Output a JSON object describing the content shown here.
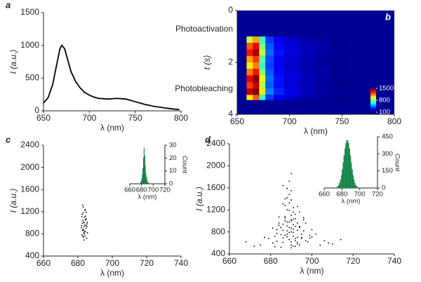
{
  "chart_data": [
    {
      "type": "line",
      "panel": "a",
      "xlabel": "λ (nm)",
      "ylabel": "I (a.u.)",
      "x": [
        650,
        655,
        660,
        665,
        668,
        670,
        673,
        676,
        680,
        685,
        690,
        695,
        700,
        705,
        710,
        720,
        730,
        740,
        750,
        760,
        770,
        780,
        790,
        798
      ],
      "values": [
        120,
        200,
        400,
        750,
        950,
        1000,
        950,
        800,
        600,
        450,
        350,
        280,
        240,
        210,
        190,
        180,
        190,
        180,
        140,
        100,
        70,
        50,
        30,
        20
      ],
      "color": "#000000",
      "xlim": [
        650,
        800
      ],
      "xticks": [
        650,
        700,
        750,
        800
      ],
      "ylim": [
        0,
        1500
      ],
      "yticks": [
        0,
        500,
        1000,
        1500
      ]
    },
    {
      "type": "heatmap",
      "panel": "b",
      "xlabel": "λ (nm)",
      "ylabel": "t (s)",
      "annotations": [
        "Photoactivation",
        "Photobleaching"
      ],
      "xlim": [
        650,
        800
      ],
      "xticks": [
        650,
        700,
        750,
        800
      ],
      "ylim": [
        4,
        0
      ],
      "yticks": [
        0,
        2,
        4
      ],
      "xbins": [
        659,
        665,
        671,
        677,
        685,
        695,
        710,
        725,
        740,
        755
      ],
      "ybins": [
        1.0,
        1.25,
        1.5,
        1.75,
        2.0,
        2.25,
        2.5,
        2.75,
        3.0,
        3.25,
        3.45
      ],
      "z": [
        [
          900,
          1100,
          700,
          350,
          250,
          200,
          160,
          140,
          120
        ],
        [
          1200,
          1350,
          800,
          400,
          280,
          220,
          170,
          150,
          120
        ],
        [
          1300,
          1450,
          900,
          420,
          300,
          230,
          180,
          150,
          130
        ],
        [
          1100,
          1250,
          750,
          380,
          270,
          210,
          170,
          140,
          120
        ],
        [
          1000,
          1150,
          700,
          360,
          260,
          200,
          160,
          140,
          120
        ],
        [
          1150,
          1300,
          820,
          400,
          280,
          220,
          170,
          150,
          120
        ],
        [
          1350,
          1500,
          950,
          430,
          300,
          230,
          180,
          150,
          130
        ],
        [
          1250,
          1400,
          880,
          400,
          290,
          220,
          170,
          140,
          120
        ],
        [
          1400,
          1500,
          1000,
          450,
          320,
          240,
          180,
          150,
          130
        ],
        [
          1000,
          1200,
          700,
          350,
          250,
          200,
          160,
          130,
          110
        ]
      ],
      "colorbar": {
        "ticks": [
          100,
          800,
          1500
        ]
      }
    },
    {
      "type": "scatter",
      "panel": "c",
      "xlabel": "λ (nm)",
      "ylabel": "I (a.u.)",
      "color": "#000000",
      "xlim": [
        660,
        740
      ],
      "xticks": [
        660,
        680,
        700,
        720,
        740
      ],
      "ylim": [
        400,
        2400
      ],
      "yticks": [
        400,
        800,
        1200,
        1600,
        2000,
        2400
      ],
      "x": [
        683.1,
        684.2,
        682.5,
        685.0,
        683.8,
        684.6,
        682.9,
        683.4,
        685.3,
        684.0,
        682.2,
        683.6,
        684.8,
        683.0,
        682.7,
        684.3,
        685.6,
        683.9,
        682.4,
        684.1,
        683.3,
        685.1,
        682.8,
        683.7,
        684.5,
        683.2,
        682.6,
        684.9,
        683.5,
        684.2,
        682.1,
        685.4,
        683.9,
        684.7,
        683.0,
        682.9,
        684.4,
        683.6,
        685.2,
        682.3
      ],
      "values": [
        1280,
        1220,
        1150,
        1190,
        1100,
        1060,
        1040,
        1010,
        980,
        960,
        950,
        930,
        900,
        880,
        860,
        840,
        820,
        800,
        780,
        760,
        740,
        720,
        1320,
        1000,
        1120,
        870,
        990,
        1070,
        690,
        1240,
        910,
        1010,
        850,
        950,
        1180,
        760,
        1050,
        820,
        930,
        1110
      ],
      "inset": {
        "type": "histogram",
        "xlabel": "λ (nm)",
        "ylabel": "Count",
        "color": "#1f9e5a",
        "bins": [
          678,
          679,
          680,
          681,
          682,
          683,
          684,
          685,
          686,
          687,
          688,
          689,
          690,
          691,
          692
        ],
        "counts": [
          1,
          2,
          4,
          7,
          12,
          20,
          28,
          22,
          14,
          8,
          5,
          3,
          1,
          1
        ],
        "xlim": [
          660,
          720
        ],
        "xticks": [
          660,
          680,
          700,
          720
        ],
        "ylim": [
          0,
          30
        ],
        "yticks": [
          0,
          10,
          20,
          30
        ]
      }
    },
    {
      "type": "scatter",
      "panel": "d",
      "xlabel": "λ (nm)",
      "ylabel": "I (a.u.)",
      "color": "#000000",
      "xlim": [
        660,
        740
      ],
      "xticks": [
        660,
        680,
        700,
        720,
        740
      ],
      "ylim": [
        400,
        2400
      ],
      "yticks": [
        400,
        800,
        1200,
        1600,
        2000,
        2400
      ],
      "x": [
        690,
        688,
        692,
        685,
        695,
        689,
        687,
        693,
        691,
        686,
        694,
        683,
        697,
        690,
        688,
        692,
        681,
        699,
        689,
        691,
        687,
        684,
        696,
        693,
        690,
        686,
        700,
        682,
        694,
        689,
        691,
        688,
        679,
        702,
        690,
        685,
        693,
        687,
        695,
        692,
        689,
        683,
        698,
        686,
        691,
        690,
        704,
        677,
        688,
        693,
        690,
        687,
        694,
        684,
        692,
        689,
        696,
        681,
        690,
        686,
        706,
        675,
        691,
        688,
        693,
        689,
        685,
        697,
        690,
        692,
        687,
        700,
        683,
        690,
        694,
        688,
        672,
        708,
        691,
        686,
        689,
        693,
        690,
        684,
        696,
        688,
        691,
        687,
        710,
        668,
        690,
        692,
        686,
        695,
        689,
        682,
        699,
        691,
        688,
        714
      ],
      "values": [
        620,
        710,
        540,
        880,
        760,
        980,
        1050,
        830,
        1240,
        690,
        560,
        770,
        640,
        1380,
        910,
        1120,
        600,
        690,
        1480,
        850,
        740,
        960,
        820,
        580,
        1020,
        1310,
        710,
        530,
        1160,
        660,
        930,
        1590,
        680,
        760,
        870,
        520,
        1260,
        1000,
        700,
        1040,
        1720,
        840,
        620,
        610,
        790,
        1100,
        560,
        700,
        1200,
        960,
        510,
        1400,
        880,
        1070,
        640,
        790,
        1020,
        870,
        1860,
        940,
        640,
        560,
        1160,
        820,
        700,
        1330,
        750,
        960,
        560,
        680,
        1080,
        840,
        630,
        1550,
        900,
        980,
        540,
        600,
        720,
        830,
        1190,
        610,
        1000,
        920,
        1060,
        760,
        540,
        1280,
        580,
        620,
        800,
        900,
        1640,
        680,
        880,
        720,
        740,
        1030,
        1420,
        660
      ],
      "inset": {
        "type": "histogram",
        "xlabel": "λ (nm)",
        "ylabel": "Count",
        "color": "#1f9e5a",
        "bins": [
          672,
          673,
          674,
          675,
          676,
          677,
          678,
          679,
          680,
          681,
          682,
          683,
          684,
          685,
          686,
          687,
          688,
          689,
          690,
          691,
          692,
          693,
          694,
          695,
          696,
          697,
          698,
          699,
          700
        ],
        "counts": [
          1,
          3,
          7,
          13,
          25,
          44,
          72,
          112,
          163,
          223,
          286,
          346,
          392,
          417,
          417,
          392,
          346,
          286,
          223,
          163,
          112,
          72,
          44,
          25,
          13,
          7,
          3,
          1
        ],
        "xlim": [
          660,
          720
        ],
        "xticks": [
          660,
          680,
          700,
          720
        ],
        "ylim": [
          0,
          450
        ],
        "yticks": [
          0,
          150,
          300,
          450
        ]
      }
    }
  ]
}
